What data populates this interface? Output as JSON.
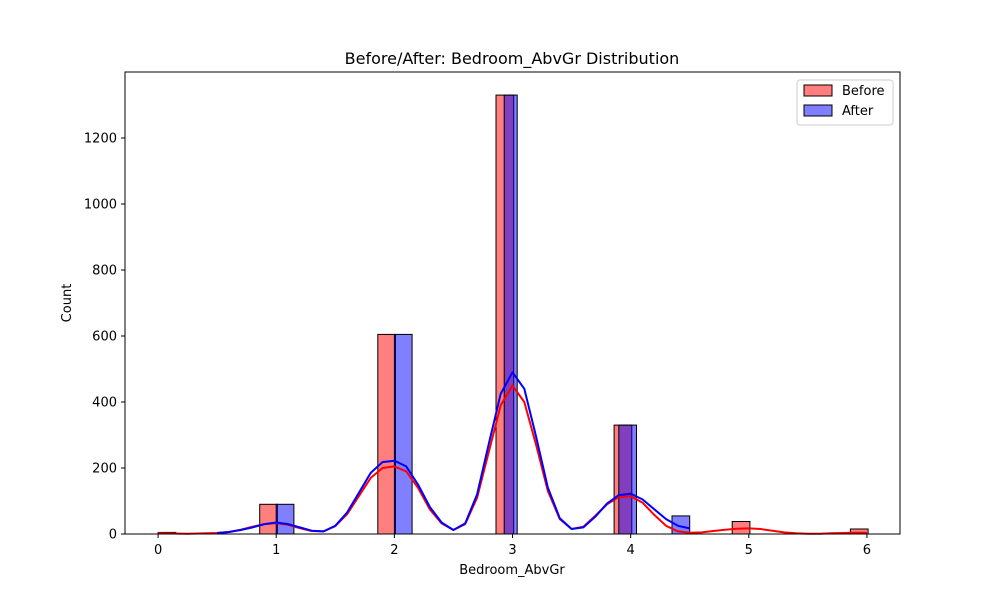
{
  "chart_data": {
    "type": "bar",
    "title": "Before/After: Bedroom_AbvGr Distribution",
    "xlabel": "Bedroom_AbvGr",
    "ylabel": "Count",
    "xlim": [
      -0.28,
      6.28
    ],
    "ylim": [
      0,
      1400
    ],
    "xticks": [
      0,
      1,
      2,
      3,
      4,
      5,
      6
    ],
    "yticks": [
      0,
      200,
      400,
      600,
      800,
      1000,
      1200
    ],
    "legend_position": "upper right",
    "grid": false,
    "series": [
      {
        "name": "Before",
        "color": "#ff0000",
        "bars": [
          {
            "x0": 0.0,
            "x1": 0.15,
            "value": 5
          },
          {
            "x0": 0.86,
            "x1": 1.01,
            "value": 90
          },
          {
            "x0": 1.86,
            "x1": 2.01,
            "value": 605
          },
          {
            "x0": 2.86,
            "x1": 3.01,
            "value": 1330
          },
          {
            "x0": 3.86,
            "x1": 4.01,
            "value": 330
          },
          {
            "x0": 4.86,
            "x1": 5.01,
            "value": 38
          },
          {
            "x0": 5.86,
            "x1": 6.01,
            "value": 15
          }
        ],
        "kde": {
          "x": [
            0.0,
            0.25,
            0.5,
            0.6,
            0.7,
            0.8,
            0.9,
            1.0,
            1.1,
            1.2,
            1.3,
            1.4,
            1.5,
            1.6,
            1.7,
            1.8,
            1.9,
            2.0,
            2.1,
            2.2,
            2.3,
            2.4,
            2.5,
            2.6,
            2.7,
            2.8,
            2.9,
            3.0,
            3.1,
            3.2,
            3.3,
            3.4,
            3.5,
            3.6,
            3.7,
            3.8,
            3.9,
            4.0,
            4.1,
            4.2,
            4.3,
            4.4,
            4.5,
            4.6,
            4.7,
            4.8,
            4.9,
            5.0,
            5.1,
            5.2,
            5.3,
            5.4,
            5.5,
            5.6,
            5.7,
            5.8,
            5.9,
            6.0
          ],
          "y": [
            2,
            1,
            3,
            6,
            13,
            22,
            30,
            33,
            28,
            18,
            9,
            8,
            24,
            60,
            115,
            170,
            200,
            205,
            190,
            140,
            75,
            32,
            12,
            30,
            110,
            250,
            390,
            450,
            400,
            270,
            130,
            45,
            15,
            22,
            55,
            90,
            112,
            115,
            95,
            58,
            25,
            8,
            4,
            5,
            9,
            13,
            16,
            17,
            15,
            10,
            5,
            2,
            1,
            1,
            2,
            3,
            4,
            4
          ]
        }
      },
      {
        "name": "After",
        "color": "#0000ff",
        "bars": [
          {
            "x0": 1.0,
            "x1": 1.15,
            "value": 90
          },
          {
            "x0": 2.0,
            "x1": 2.15,
            "value": 605
          },
          {
            "x0": 2.93,
            "x1": 3.04,
            "value": 1330
          },
          {
            "x0": 3.9,
            "x1": 4.05,
            "value": 330
          },
          {
            "x0": 4.35,
            "x1": 4.5,
            "value": 55
          }
        ],
        "kde": {
          "x": [
            0.5,
            0.6,
            0.7,
            0.8,
            0.9,
            1.0,
            1.1,
            1.2,
            1.3,
            1.4,
            1.5,
            1.6,
            1.7,
            1.8,
            1.9,
            2.0,
            2.1,
            2.2,
            2.3,
            2.4,
            2.5,
            2.6,
            2.7,
            2.8,
            2.9,
            3.0,
            3.1,
            3.2,
            3.3,
            3.4,
            3.5,
            3.6,
            3.7,
            3.8,
            3.9,
            4.0,
            4.1,
            4.2,
            4.3,
            4.4,
            4.5
          ],
          "y": [
            3,
            6,
            12,
            20,
            30,
            35,
            30,
            20,
            10,
            8,
            25,
            65,
            125,
            185,
            218,
            222,
            205,
            150,
            82,
            35,
            12,
            32,
            120,
            275,
            425,
            490,
            440,
            295,
            140,
            48,
            15,
            20,
            52,
            92,
            118,
            122,
            105,
            75,
            45,
            25,
            17
          ]
        }
      }
    ]
  }
}
